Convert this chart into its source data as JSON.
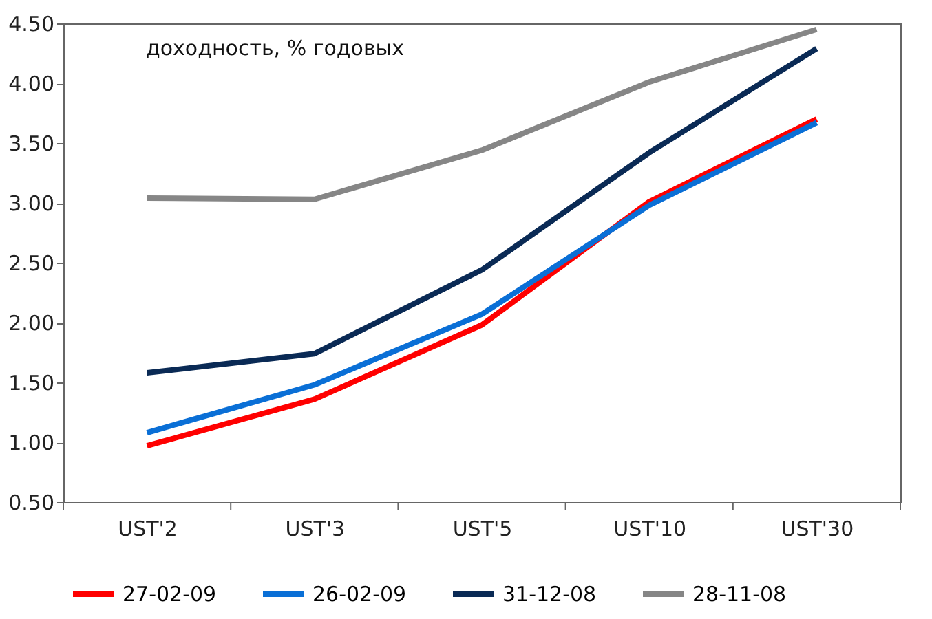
{
  "chart_data": {
    "type": "line",
    "categories": [
      "UST'2",
      "UST'3",
      "UST'5",
      "UST'10",
      "UST'30"
    ],
    "series": [
      {
        "name": "27-02-09",
        "color": "#ff0000",
        "values": [
          0.97,
          1.36,
          1.98,
          3.01,
          3.7
        ]
      },
      {
        "name": "26-02-09",
        "color": "#0a6fd6",
        "values": [
          1.08,
          1.48,
          2.07,
          2.98,
          3.67
        ]
      },
      {
        "name": "31-12-08",
        "color": "#0a2a55",
        "values": [
          1.58,
          1.74,
          2.44,
          3.42,
          4.29
        ]
      },
      {
        "name": "28-11-08",
        "color": "#868686",
        "values": [
          3.04,
          3.03,
          3.44,
          4.01,
          4.45
        ]
      }
    ],
    "ylim": [
      0.5,
      4.5
    ],
    "yticks": [
      {
        "value": 0.5,
        "label": "0.50"
      },
      {
        "value": 1.0,
        "label": "1.00"
      },
      {
        "value": 1.5,
        "label": "1.50"
      },
      {
        "value": 2.0,
        "label": "2.00"
      },
      {
        "value": 2.5,
        "label": "2.50"
      },
      {
        "value": 3.0,
        "label": "3.00"
      },
      {
        "value": 3.5,
        "label": "3.50"
      },
      {
        "value": 4.0,
        "label": "4.00"
      },
      {
        "value": 4.5,
        "label": "4.50"
      }
    ],
    "annotations": [
      "доходность, % годовых"
    ],
    "grid": false,
    "legend": "bottom",
    "marker": "none",
    "line_style": "solid"
  }
}
